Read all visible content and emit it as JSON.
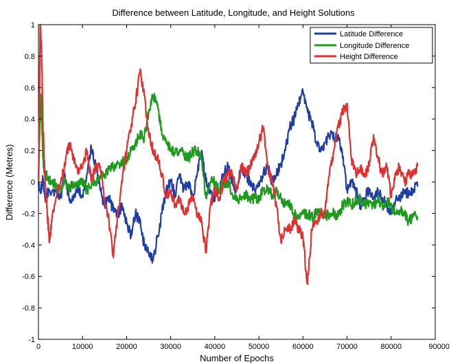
{
  "chart_data": {
    "type": "line",
    "title": "Difference between Latitude, Longitude, and Height Solutions",
    "xlabel": "Number of Epochs",
    "ylabel": "Difference (Metres)",
    "xlim": [
      0,
      90000
    ],
    "ylim": [
      -1,
      1
    ],
    "xticks": [
      0,
      10000,
      20000,
      30000,
      40000,
      50000,
      60000,
      70000,
      80000,
      90000
    ],
    "yticks": [
      -1,
      -0.8,
      -0.6,
      -0.4,
      -0.2,
      0,
      0.2,
      0.4,
      0.6,
      0.8,
      1
    ],
    "grid": false,
    "legend_position": "top-right",
    "series": [
      {
        "name": "Latitude Difference",
        "color": "#1f3fa6",
        "points": [
          [
            0,
            0
          ],
          [
            500,
            -0.05
          ],
          [
            1000,
            0.02
          ],
          [
            1500,
            -0.1
          ],
          [
            2500,
            -0.05
          ],
          [
            4000,
            -0.06
          ],
          [
            5000,
            -0.1
          ],
          [
            6000,
            0.05
          ],
          [
            7000,
            -0.12
          ],
          [
            8000,
            -0.08
          ],
          [
            9000,
            -0.05
          ],
          [
            10000,
            -0.08
          ],
          [
            11000,
            0.05
          ],
          [
            12000,
            0.22
          ],
          [
            13000,
            0.1
          ],
          [
            14000,
            -0.05
          ],
          [
            15000,
            -0.15
          ],
          [
            16000,
            -0.1
          ],
          [
            17000,
            -0.18
          ],
          [
            18000,
            -0.2
          ],
          [
            19000,
            -0.15
          ],
          [
            20000,
            -0.25
          ],
          [
            21000,
            -0.35
          ],
          [
            22000,
            -0.2
          ],
          [
            23000,
            -0.25
          ],
          [
            24000,
            -0.4
          ],
          [
            25000,
            -0.45
          ],
          [
            26000,
            -0.5
          ],
          [
            27000,
            -0.35
          ],
          [
            28000,
            -0.2
          ],
          [
            29000,
            -0.05
          ],
          [
            30000,
            0
          ],
          [
            31000,
            -0.08
          ],
          [
            32000,
            0.05
          ],
          [
            33000,
            -0.05
          ],
          [
            34000,
            0
          ],
          [
            35000,
            -0.1
          ],
          [
            36000,
            0.05
          ],
          [
            37000,
            0.2
          ],
          [
            38000,
            0
          ],
          [
            39000,
            -0.05
          ],
          [
            40000,
            -0.12
          ],
          [
            41000,
            -0.05
          ],
          [
            42000,
            0.05
          ],
          [
            43000,
            0.1
          ],
          [
            44000,
            0
          ],
          [
            45000,
            -0.05
          ],
          [
            46000,
            0.1
          ],
          [
            47000,
            0.05
          ],
          [
            48000,
            0
          ],
          [
            49000,
            -0.05
          ],
          [
            50000,
            0
          ],
          [
            51000,
            0.05
          ],
          [
            52000,
            0.1
          ],
          [
            53000,
            0
          ],
          [
            54000,
            0.05
          ],
          [
            55000,
            0.12
          ],
          [
            56000,
            0.2
          ],
          [
            57000,
            0.35
          ],
          [
            58000,
            0.4
          ],
          [
            59000,
            0.5
          ],
          [
            60000,
            0.58
          ],
          [
            61000,
            0.45
          ],
          [
            62000,
            0.38
          ],
          [
            63000,
            0.25
          ],
          [
            64000,
            0.2
          ],
          [
            65000,
            0.25
          ],
          [
            66000,
            0.3
          ],
          [
            67000,
            0.28
          ],
          [
            68000,
            0.3
          ],
          [
            69000,
            0.15
          ],
          [
            70000,
            -0.05
          ],
          [
            71000,
            0
          ],
          [
            72000,
            -0.05
          ],
          [
            73000,
            -0.15
          ],
          [
            74000,
            -0.1
          ],
          [
            75000,
            -0.05
          ],
          [
            76000,
            -0.1
          ],
          [
            77000,
            -0.05
          ],
          [
            78000,
            -0.1
          ],
          [
            79000,
            -0.15
          ],
          [
            80000,
            -0.2
          ],
          [
            81000,
            -0.12
          ],
          [
            82000,
            -0.1
          ],
          [
            83000,
            -0.05
          ],
          [
            84000,
            -0.08
          ],
          [
            85000,
            -0.05
          ],
          [
            86000,
            -0.03
          ]
        ]
      },
      {
        "name": "Longitude Difference",
        "color": "#1f9a1f",
        "points": [
          [
            0,
            0
          ],
          [
            300,
            0.35
          ],
          [
            600,
            0.56
          ],
          [
            1000,
            0.15
          ],
          [
            1500,
            0.05
          ],
          [
            2000,
            0.03
          ],
          [
            3000,
            0
          ],
          [
            4000,
            -0.02
          ],
          [
            5000,
            -0.05
          ],
          [
            6000,
            0
          ],
          [
            7000,
            -0.05
          ],
          [
            8000,
            0
          ],
          [
            9000,
            -0.02
          ],
          [
            10000,
            0
          ],
          [
            11000,
            -0.05
          ],
          [
            12000,
            -0.03
          ],
          [
            13000,
            0
          ],
          [
            14000,
            0.02
          ],
          [
            15000,
            0.05
          ],
          [
            16000,
            0.08
          ],
          [
            17000,
            0.1
          ],
          [
            18000,
            0.12
          ],
          [
            19000,
            0.12
          ],
          [
            20000,
            0.15
          ],
          [
            21000,
            0.2
          ],
          [
            22000,
            0.25
          ],
          [
            23000,
            0.3
          ],
          [
            24000,
            0.28
          ],
          [
            25000,
            0.45
          ],
          [
            26000,
            0.55
          ],
          [
            27000,
            0.5
          ],
          [
            28000,
            0.3
          ],
          [
            29000,
            0.25
          ],
          [
            30000,
            0.2
          ],
          [
            31000,
            0.18
          ],
          [
            32000,
            0.2
          ],
          [
            33000,
            0.18
          ],
          [
            34000,
            0.15
          ],
          [
            35000,
            0.2
          ],
          [
            36000,
            0.2
          ],
          [
            37000,
            0.15
          ],
          [
            38000,
            -0.1
          ],
          [
            39000,
            0
          ],
          [
            40000,
            0
          ],
          [
            41000,
            -0.05
          ],
          [
            42000,
            0
          ],
          [
            43000,
            0
          ],
          [
            44000,
            -0.08
          ],
          [
            45000,
            -0.12
          ],
          [
            46000,
            -0.1
          ],
          [
            47000,
            -0.08
          ],
          [
            48000,
            -0.12
          ],
          [
            49000,
            -0.1
          ],
          [
            50000,
            -0.1
          ],
          [
            51000,
            -0.05
          ],
          [
            52000,
            -0.05
          ],
          [
            53000,
            -0.08
          ],
          [
            54000,
            -0.05
          ],
          [
            55000,
            -0.1
          ],
          [
            56000,
            -0.15
          ],
          [
            57000,
            -0.15
          ],
          [
            58000,
            -0.2
          ],
          [
            59000,
            -0.22
          ],
          [
            60000,
            -0.2
          ],
          [
            61000,
            -0.2
          ],
          [
            62000,
            -0.22
          ],
          [
            63000,
            -0.2
          ],
          [
            64000,
            -0.2
          ],
          [
            65000,
            -0.22
          ],
          [
            66000,
            -0.2
          ],
          [
            67000,
            -0.2
          ],
          [
            68000,
            -0.22
          ],
          [
            69000,
            -0.15
          ],
          [
            70000,
            -0.12
          ],
          [
            71000,
            -0.15
          ],
          [
            72000,
            -0.12
          ],
          [
            73000,
            -0.1
          ],
          [
            74000,
            -0.15
          ],
          [
            75000,
            -0.12
          ],
          [
            76000,
            -0.15
          ],
          [
            77000,
            -0.1
          ],
          [
            78000,
            -0.15
          ],
          [
            79000,
            -0.12
          ],
          [
            80000,
            -0.15
          ],
          [
            81000,
            -0.2
          ],
          [
            82000,
            -0.18
          ],
          [
            83000,
            -0.2
          ],
          [
            84000,
            -0.25
          ],
          [
            85000,
            -0.22
          ],
          [
            86000,
            -0.22
          ]
        ]
      },
      {
        "name": "Height Difference",
        "color": "#e03030",
        "points": [
          [
            0,
            0
          ],
          [
            200,
            0.5
          ],
          [
            400,
            1
          ],
          [
            700,
            0.85
          ],
          [
            1000,
            0.4
          ],
          [
            1500,
            0
          ],
          [
            2000,
            -0.2
          ],
          [
            2500,
            -0.38
          ],
          [
            3000,
            -0.25
          ],
          [
            4000,
            -0.1
          ],
          [
            5000,
            0
          ],
          [
            6000,
            0.1
          ],
          [
            7000,
            0.25
          ],
          [
            8000,
            0.15
          ],
          [
            9000,
            0.05
          ],
          [
            10000,
            0.1
          ],
          [
            11000,
            0.2
          ],
          [
            12000,
            0
          ],
          [
            13000,
            0.1
          ],
          [
            14000,
            0.1
          ],
          [
            15000,
            -0.1
          ],
          [
            16000,
            -0.25
          ],
          [
            17000,
            -0.48
          ],
          [
            18000,
            -0.2
          ],
          [
            19000,
            0
          ],
          [
            20000,
            0.2
          ],
          [
            21000,
            0.35
          ],
          [
            22000,
            0.5
          ],
          [
            23000,
            0.7
          ],
          [
            24000,
            0.55
          ],
          [
            25000,
            0.3
          ],
          [
            26000,
            0.2
          ],
          [
            27000,
            0.15
          ],
          [
            28000,
            0.05
          ],
          [
            29000,
            -0.1
          ],
          [
            30000,
            -0.05
          ],
          [
            31000,
            -0.15
          ],
          [
            32000,
            -0.1
          ],
          [
            33000,
            -0.2
          ],
          [
            34000,
            -0.15
          ],
          [
            35000,
            -0.1
          ],
          [
            36000,
            -0.2
          ],
          [
            37000,
            -0.25
          ],
          [
            38000,
            -0.45
          ],
          [
            39000,
            -0.15
          ],
          [
            40000,
            -0.05
          ],
          [
            41000,
            -0.1
          ],
          [
            42000,
            0
          ],
          [
            43000,
            0.05
          ],
          [
            44000,
            0.05
          ],
          [
            45000,
            -0.05
          ],
          [
            46000,
            0.1
          ],
          [
            47000,
            0.05
          ],
          [
            48000,
            0.1
          ],
          [
            49000,
            0.15
          ],
          [
            50000,
            0.25
          ],
          [
            51000,
            0.35
          ],
          [
            52000,
            0.1
          ],
          [
            53000,
            0
          ],
          [
            54000,
            -0.15
          ],
          [
            55000,
            -0.38
          ],
          [
            56000,
            -0.3
          ],
          [
            57000,
            -0.3
          ],
          [
            58000,
            -0.25
          ],
          [
            59000,
            -0.3
          ],
          [
            60000,
            -0.35
          ],
          [
            61000,
            -0.65
          ],
          [
            62000,
            -0.3
          ],
          [
            63000,
            -0.25
          ],
          [
            64000,
            -0.2
          ],
          [
            65000,
            -0.2
          ],
          [
            66000,
            0.05
          ],
          [
            67000,
            0.2
          ],
          [
            68000,
            0.35
          ],
          [
            69000,
            0.45
          ],
          [
            70000,
            0.5
          ],
          [
            71000,
            0.15
          ],
          [
            72000,
            0.05
          ],
          [
            73000,
            0.1
          ],
          [
            74000,
            0.05
          ],
          [
            75000,
            0.1
          ],
          [
            76000,
            0.3
          ],
          [
            77000,
            0.15
          ],
          [
            78000,
            0.05
          ],
          [
            79000,
            0.1
          ],
          [
            80000,
            -0.1
          ],
          [
            81000,
            0.05
          ],
          [
            82000,
            0.1
          ],
          [
            83000,
            0
          ],
          [
            84000,
            0.05
          ],
          [
            85000,
            0.05
          ],
          [
            86000,
            0.1
          ]
        ]
      }
    ]
  }
}
